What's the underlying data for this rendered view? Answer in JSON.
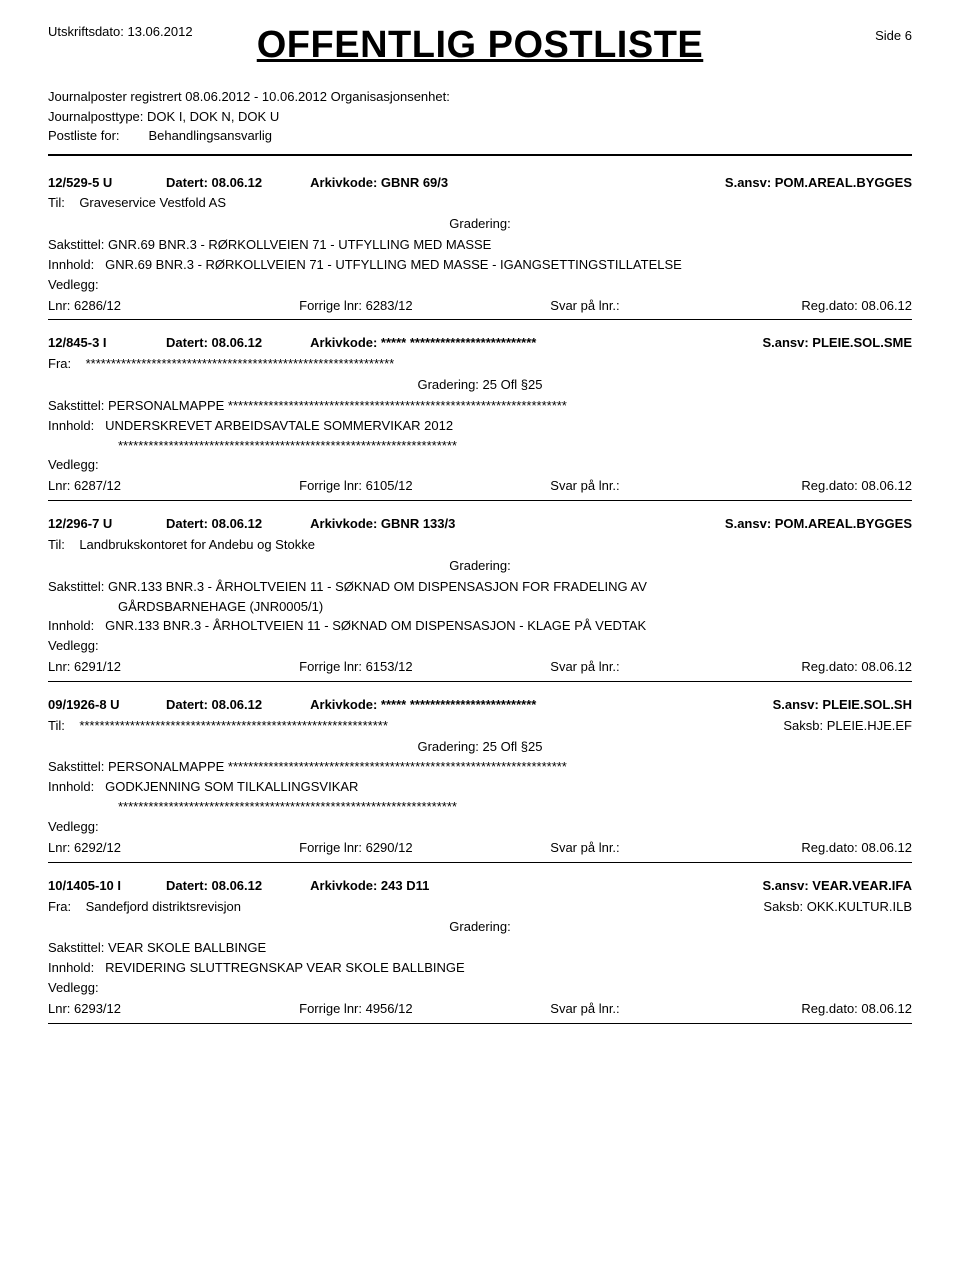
{
  "header": {
    "printLabel": "Utskriftsdato:",
    "printDate": "13.06.2012",
    "title": "OFFENTLIG POSTLISTE",
    "sideLabel": "Side 6"
  },
  "meta": {
    "line1a": "Journalposter registrert",
    "line1b": "08.06.2012 - 10.06.2012",
    "line1c": "Organisasjonsenhet:",
    "line2a": "Journalposttype:",
    "line2b": "DOK I, DOK N, DOK U",
    "line3a": "Postliste for:",
    "line3b": "Behandlingsansvarlig"
  },
  "labels": {
    "til": "Til:",
    "fra": "Fra:",
    "sakstittel": "Sakstittel:",
    "innhold": "Innhold:",
    "vedlegg": "Vedlegg:",
    "gradering": "Gradering:",
    "gradering25": "Gradering: 25 Ofl §25",
    "lnr": "Lnr:",
    "forrige": "Forrige lnr:",
    "svar": "Svar på lnr.:",
    "regdato": "Reg.dato:"
  },
  "entries": [
    {
      "case": "12/529-5  U",
      "dated": "Datert: 08.06.12",
      "arkiv": "Arkivkode: GBNR 69/3",
      "sansv": "S.ansv: POM.AREAL.BYGGES",
      "tilfraLabel": "Til:",
      "tilfra": "Graveservice Vestfold AS",
      "saksb": "",
      "gradering": "Gradering:",
      "sakstittel": "GNR.69 BNR.3 - RØRKOLLVEIEN 71 - UTFYLLING MED MASSE",
      "sakstittel2": "",
      "innhold": "GNR.69 BNR.3 - RØRKOLLVEIEN 71 - UTFYLLING MED MASSE -  IGANGSETTINGSTILLATELSE",
      "innhold2": "",
      "lnr": "6286/12",
      "forrige": "6283/12",
      "regdato": "08.06.12"
    },
    {
      "case": "12/845-3  I",
      "dated": "Datert: 08.06.12",
      "arkiv": "Arkivkode: ***** *************************",
      "sansv": "S.ansv: PLEIE.SOL.SME",
      "tilfraLabel": "Fra:",
      "tilfra": "*************************************************************",
      "saksb": "",
      "gradering": "Gradering: 25 Ofl §25",
      "sakstittel": "PERSONALMAPPE  *******************************************************************",
      "sakstittel2": "",
      "innhold": "UNDERSKREVET ARBEIDSAVTALE SOMMERVIKAR 2012",
      "innhold2": "*******************************************************************",
      "lnr": "6287/12",
      "forrige": "6105/12",
      "regdato": "08.06.12"
    },
    {
      "case": "12/296-7  U",
      "dated": "Datert: 08.06.12",
      "arkiv": "Arkivkode: GBNR 133/3",
      "sansv": "S.ansv: POM.AREAL.BYGGES",
      "tilfraLabel": "Til:",
      "tilfra": "Landbrukskontoret for Andebu og Stokke",
      "saksb": "",
      "gradering": "Gradering:",
      "sakstittel": "GNR.133 BNR.3 - ÅRHOLTVEIEN 11 - SØKNAD OM DISPENSASJON  FOR FRADELING AV",
      "sakstittel2": "GÅRDSBARNEHAGE (JNR0005/1)",
      "innhold": "GNR.133 BNR.3 - ÅRHOLTVEIEN 11 - SØKNAD OM DISPENSASJON -  KLAGE PÅ VEDTAK",
      "innhold2": "",
      "lnr": "6291/12",
      "forrige": "6153/12",
      "regdato": "08.06.12"
    },
    {
      "case": "09/1926-8  U",
      "dated": "Datert: 08.06.12",
      "arkiv": "Arkivkode: ***** *************************",
      "sansv": "S.ansv: PLEIE.SOL.SH",
      "tilfraLabel": "Til:",
      "tilfra": "*************************************************************",
      "saksb": "Saksb:  PLEIE.HJE.EF",
      "gradering": "Gradering: 25 Ofl §25",
      "sakstittel": "PERSONALMAPPE  *******************************************************************",
      "sakstittel2": "",
      "innhold": "GODKJENNING SOM TILKALLINGSVIKAR",
      "innhold2": "*******************************************************************",
      "lnr": "6292/12",
      "forrige": "6290/12",
      "regdato": "08.06.12"
    },
    {
      "case": "10/1405-10  I",
      "dated": "Datert: 08.06.12",
      "arkiv": "Arkivkode: 243 D11",
      "sansv": "S.ansv: VEAR.VEAR.IFA",
      "tilfraLabel": "Fra:",
      "tilfra": "Sandefjord distriktsrevisjon",
      "saksb": "Saksb:  OKK.KULTUR.ILB",
      "gradering": "Gradering:",
      "sakstittel": "VEAR SKOLE BALLBINGE",
      "sakstittel2": "",
      "innhold": "REVIDERING SLUTTREGNSKAP VEAR SKOLE BALLBINGE",
      "innhold2": "",
      "lnr": "6293/12",
      "forrige": "4956/12",
      "regdato": "08.06.12"
    }
  ]
}
